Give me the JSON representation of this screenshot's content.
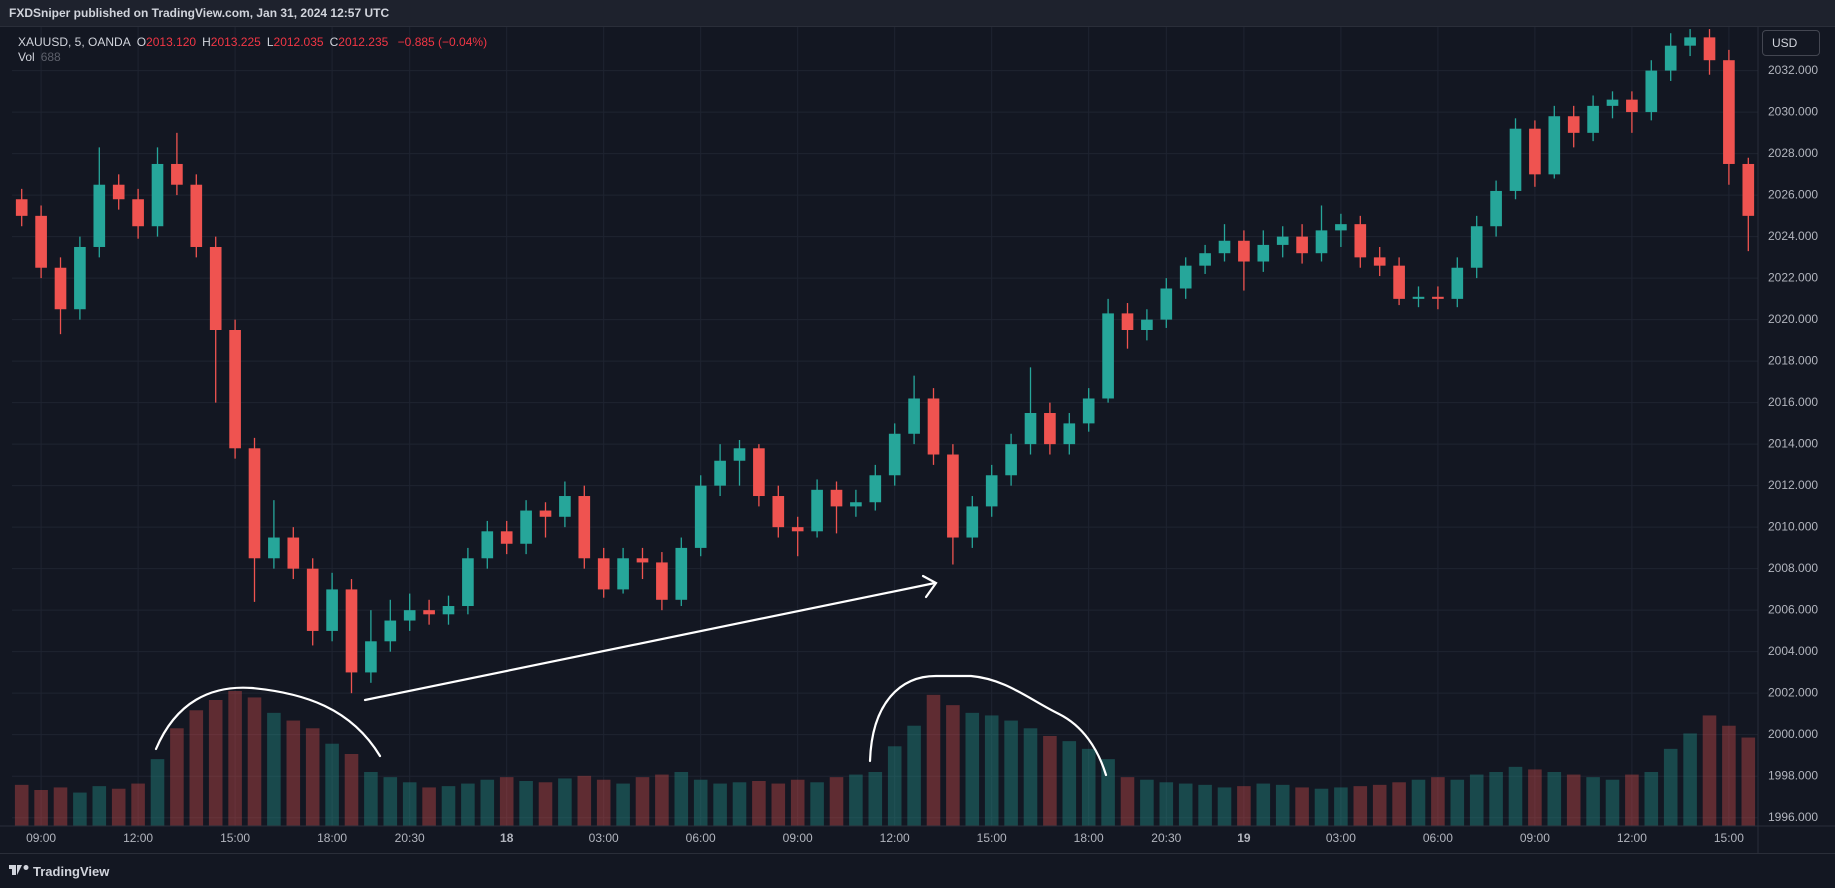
{
  "header": "FXDSniper published on TradingView.com, Jan 31, 2024 12:57 UTC",
  "footer": "TradingView",
  "chart_data": {
    "type": "candlestick",
    "symbol": "XAUUSD, 5, OANDA",
    "ohlc": [
      {
        "key": "O",
        "value": "2013.120"
      },
      {
        "key": "H",
        "value": "2013.225"
      },
      {
        "key": "L",
        "value": "2012.035"
      },
      {
        "key": "C",
        "value": "2012.235"
      }
    ],
    "change": "−0.885 (−0.04%)",
    "volume_label": "Vol",
    "currency": "USD",
    "up_color": "#26a69a",
    "down_color": "#ef5350",
    "grid": true,
    "ylim": [
      1995.6,
      2034.1
    ],
    "yticks": [
      {
        "value": 1996,
        "label": "1996.000"
      },
      {
        "value": 1998,
        "label": "1998.000"
      },
      {
        "value": 2000,
        "label": "2000.000"
      },
      {
        "value": 2002,
        "label": "2002.000"
      },
      {
        "value": 2004,
        "label": "2004.000"
      },
      {
        "value": 2006,
        "label": "2006.000"
      },
      {
        "value": 2008,
        "label": "2008.000"
      },
      {
        "value": 2010,
        "label": "2010.000"
      },
      {
        "value": 2012,
        "label": "2012.000"
      },
      {
        "value": 2014,
        "label": "2014.000"
      },
      {
        "value": 2016,
        "label": "2016.000"
      },
      {
        "value": 2018,
        "label": "2018.000"
      },
      {
        "value": 2020,
        "label": "2020.000"
      },
      {
        "value": 2022,
        "label": "2022.000"
      },
      {
        "value": 2024,
        "label": "2024.000"
      },
      {
        "value": 2026,
        "label": "2026.000"
      },
      {
        "value": 2028,
        "label": "2028.000"
      },
      {
        "value": 2030,
        "label": "2030.000"
      },
      {
        "value": 2032,
        "label": "2032.000"
      }
    ],
    "categories": [
      null,
      "09:00",
      null,
      null,
      null,
      null,
      "12:00",
      null,
      null,
      null,
      null,
      "15:00",
      null,
      null,
      null,
      null,
      "18:00",
      null,
      null,
      null,
      "20:30",
      null,
      null,
      null,
      null,
      "18",
      null,
      null,
      null,
      null,
      "03:00",
      null,
      null,
      null,
      null,
      "06:00",
      null,
      null,
      null,
      null,
      "09:00",
      null,
      null,
      null,
      null,
      "12:00",
      null,
      null,
      null,
      null,
      "15:00",
      null,
      null,
      null,
      null,
      "18:00",
      null,
      null,
      null,
      "20:30",
      null,
      null,
      null,
      "19",
      null,
      null,
      null,
      null,
      "03:00",
      null,
      null,
      null,
      null,
      "06:00",
      null,
      null,
      null,
      null,
      "09:00",
      null,
      null,
      null,
      null,
      "12:00",
      null,
      null,
      null,
      null,
      "15:00",
      null
    ],
    "open": [
      2025.8,
      2025.0,
      2022.5,
      2020.5,
      2023.5,
      2026.5,
      2025.8,
      2024.5,
      2027.5,
      2026.5,
      2023.5,
      2019.5,
      2013.8,
      2008.5,
      2009.5,
      2008.0,
      2005.0,
      2007.0,
      2003.0,
      2004.5,
      2005.5,
      2006.0,
      2005.8,
      2006.2,
      2008.5,
      2009.8,
      2009.2,
      2010.8,
      2010.5,
      2011.5,
      2008.5,
      2007.0,
      2008.5,
      2008.3,
      2006.5,
      2009.0,
      2012.0,
      2013.2,
      2013.8,
      2011.5,
      2010.0,
      2009.8,
      2011.8,
      2011.0,
      2011.2,
      2012.5,
      2014.5,
      2016.2,
      2013.5,
      2009.5,
      2011.0,
      2012.5,
      2014.0,
      2015.5,
      2014.0,
      2015.0,
      2016.2,
      2020.3,
      2019.5,
      2020.0,
      2021.5,
      2022.6,
      2023.2,
      2023.8,
      2022.8,
      2023.6,
      2024.0,
      2023.2,
      2024.3,
      2024.6,
      2023.0,
      2022.6,
      2021.0,
      2021.1,
      2021.0,
      2022.5,
      2024.5,
      2026.2,
      2029.2,
      2027.0,
      2029.8,
      2029.0,
      2030.3,
      2030.6,
      2030.0,
      2032.0,
      2033.2,
      2033.6,
      2032.5,
      2027.5
    ],
    "high": [
      2026.3,
      2025.5,
      2023.0,
      2024.0,
      2028.3,
      2027.0,
      2026.3,
      2028.3,
      2029.0,
      2027.0,
      2024.0,
      2020.0,
      2014.3,
      2011.3,
      2010.0,
      2008.5,
      2007.8,
      2007.5,
      2006.0,
      2006.5,
      2006.8,
      2006.5,
      2006.7,
      2009.0,
      2010.3,
      2010.3,
      2011.3,
      2011.2,
      2012.2,
      2012.0,
      2009.0,
      2009.0,
      2009.0,
      2008.8,
      2009.5,
      2012.5,
      2014.0,
      2014.2,
      2014.0,
      2012.0,
      2010.5,
      2012.3,
      2012.2,
      2011.8,
      2013.0,
      2015.0,
      2017.3,
      2016.7,
      2014.0,
      2011.5,
      2013.0,
      2014.5,
      2017.7,
      2016.0,
      2015.5,
      2016.7,
      2021.0,
      2020.8,
      2020.5,
      2022.0,
      2023.0,
      2023.6,
      2024.6,
      2024.3,
      2024.3,
      2024.5,
      2024.6,
      2025.5,
      2025.1,
      2025.0,
      2023.5,
      2023.0,
      2021.6,
      2021.6,
      2023.0,
      2025.0,
      2026.7,
      2029.7,
      2029.6,
      2030.3,
      2030.3,
      2030.8,
      2031.0,
      2031.0,
      2032.5,
      2033.8,
      2034.0,
      2034.0,
      2033.0,
      2027.8
    ],
    "low": [
      2024.5,
      2022.0,
      2019.3,
      2020.0,
      2023.0,
      2025.3,
      2023.9,
      2024.0,
      2026.0,
      2023.0,
      2016.0,
      2013.3,
      2006.4,
      2008.0,
      2007.5,
      2004.3,
      2004.5,
      2002.0,
      2002.5,
      2004.0,
      2005.0,
      2005.3,
      2005.3,
      2005.8,
      2008.0,
      2008.7,
      2008.7,
      2009.5,
      2010.0,
      2008.0,
      2006.6,
      2006.8,
      2007.5,
      2006.0,
      2006.2,
      2008.6,
      2011.5,
      2012.0,
      2011.0,
      2009.5,
      2008.6,
      2009.5,
      2009.7,
      2010.5,
      2010.8,
      2012.0,
      2014.0,
      2013.0,
      2008.2,
      2009.0,
      2010.5,
      2012.0,
      2013.5,
      2013.5,
      2013.5,
      2014.6,
      2016.0,
      2018.6,
      2019.0,
      2019.6,
      2021.0,
      2022.2,
      2022.8,
      2021.4,
      2022.3,
      2023.0,
      2022.7,
      2022.8,
      2023.5,
      2022.5,
      2022.1,
      2020.7,
      2020.6,
      2020.5,
      2020.6,
      2022.0,
      2024.0,
      2025.8,
      2026.4,
      2026.8,
      2028.3,
      2028.6,
      2029.7,
      2029.0,
      2029.6,
      2031.5,
      2032.7,
      2031.8,
      2026.5,
      2023.3
    ],
    "close": [
      2025.0,
      2022.5,
      2020.5,
      2023.5,
      2026.5,
      2025.8,
      2024.5,
      2027.5,
      2026.5,
      2023.5,
      2019.5,
      2013.8,
      2008.5,
      2009.5,
      2008.0,
      2005.0,
      2007.0,
      2003.0,
      2004.5,
      2005.5,
      2006.0,
      2005.8,
      2006.2,
      2008.5,
      2009.8,
      2009.2,
      2010.8,
      2010.5,
      2011.5,
      2008.5,
      2007.0,
      2008.5,
      2008.3,
      2006.5,
      2009.0,
      2012.0,
      2013.2,
      2013.8,
      2011.5,
      2010.0,
      2009.8,
      2011.8,
      2011.0,
      2011.2,
      2012.5,
      2014.5,
      2016.2,
      2013.5,
      2009.5,
      2011.0,
      2012.5,
      2014.0,
      2015.5,
      2014.0,
      2015.0,
      2016.2,
      2020.3,
      2019.5,
      2020.0,
      2021.5,
      2022.6,
      2023.2,
      2023.8,
      2022.8,
      2023.6,
      2024.0,
      2023.2,
      2024.3,
      2024.6,
      2023.0,
      2022.6,
      2021.0,
      2021.1,
      2021.0,
      2022.5,
      2024.5,
      2026.2,
      2029.2,
      2027.0,
      2029.8,
      2029.0,
      2030.3,
      2030.6,
      2030.0,
      2032.0,
      2033.2,
      2033.6,
      2032.5,
      2027.5,
      2025.0
    ],
    "volume": [
      320,
      280,
      300,
      260,
      310,
      290,
      330,
      520,
      760,
      900,
      980,
      1050,
      1000,
      880,
      820,
      760,
      640,
      560,
      420,
      380,
      340,
      300,
      310,
      330,
      360,
      380,
      350,
      340,
      370,
      390,
      360,
      330,
      380,
      400,
      420,
      360,
      330,
      340,
      350,
      330,
      360,
      340,
      380,
      400,
      420,
      620,
      780,
      1020,
      940,
      880,
      860,
      820,
      760,
      700,
      660,
      600,
      520,
      380,
      360,
      340,
      330,
      320,
      300,
      310,
      330,
      320,
      300,
      290,
      300,
      310,
      320,
      340,
      360,
      380,
      360,
      400,
      420,
      460,
      440,
      420,
      400,
      380,
      360,
      400,
      420,
      600,
      720,
      860,
      780,
      688
    ]
  }
}
